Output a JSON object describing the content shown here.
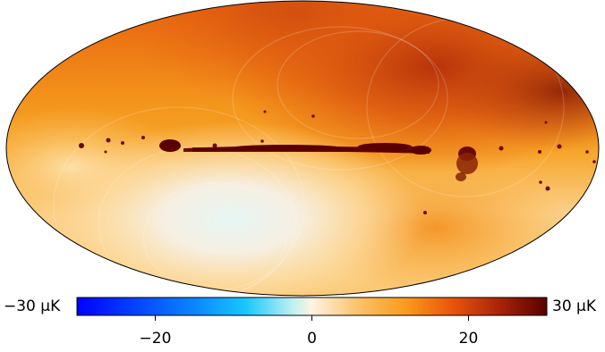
{
  "map": {
    "projection": "mollweide",
    "colormap": [
      "#0000ff",
      "#00c8ff",
      "#ffffff",
      "#ffa500",
      "#ff4500",
      "#6b0000"
    ],
    "features": [
      "galactic plane band (dark red)",
      "warm north-east quadrant",
      "cool south-central region (light cyan/white)"
    ]
  },
  "colorbar": {
    "min_label": "−30 μK",
    "max_label": "30 μK",
    "ticks": [
      {
        "value": -20,
        "label": "−20"
      },
      {
        "value": 0,
        "label": "0"
      },
      {
        "value": 20,
        "label": "20"
      }
    ],
    "range": [
      -30,
      30
    ],
    "unit": "μK"
  }
}
